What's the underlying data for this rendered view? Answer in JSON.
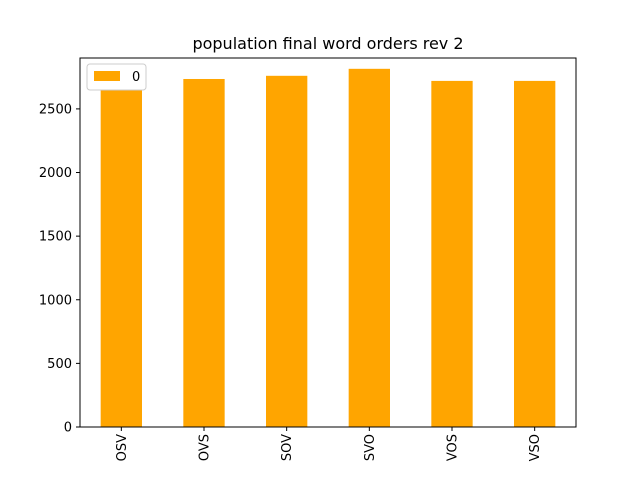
{
  "chart_data": {
    "type": "bar",
    "title": "population final word orders rev 2",
    "categories": [
      "OSV",
      "OVS",
      "SOV",
      "SVO",
      "VOS",
      "VSO"
    ],
    "series": [
      {
        "name": "0",
        "color": "#ffa500",
        "values": [
          2670,
          2735,
          2760,
          2815,
          2720,
          2720
        ]
      }
    ],
    "xlabel": "",
    "ylabel": "",
    "ylim": [
      0,
      2900
    ],
    "yticks": [
      0,
      500,
      1000,
      1500,
      2000,
      2500
    ],
    "ytick_labels": [
      "0",
      "500",
      "1000",
      "1500",
      "2000",
      "2500"
    ],
    "xtick_rotation": "vertical",
    "grid": false,
    "legend": {
      "placement": "top-left",
      "entries": [
        "0"
      ]
    }
  }
}
